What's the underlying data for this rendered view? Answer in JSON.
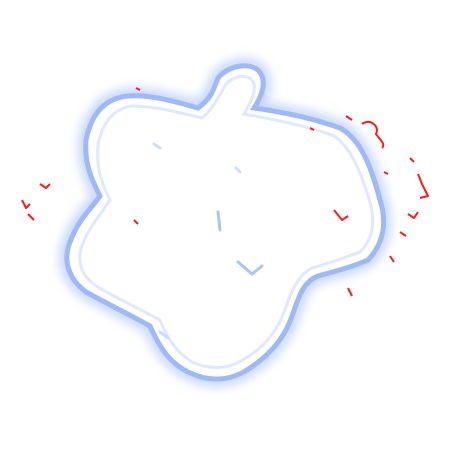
{
  "image": {
    "background": "#ffffff",
    "outline_color": "#5f86ee",
    "glow_color": "#c8d8ff",
    "fill_color": "#ffffff",
    "speckle_color": "#ff1a1a"
  }
}
